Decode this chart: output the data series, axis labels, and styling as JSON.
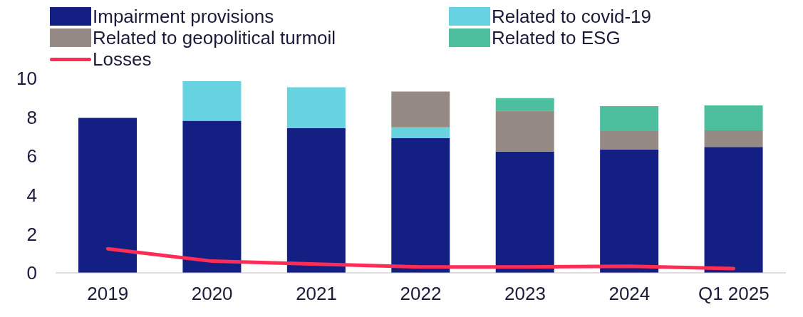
{
  "chart_data": {
    "type": "bar",
    "stacked": true,
    "categories": [
      "2019",
      "2020",
      "2021",
      "2022",
      "2023",
      "2024",
      "Q1 2025"
    ],
    "series": [
      {
        "name": "Impairment provisions",
        "color": "#131f82",
        "values": [
          7.97,
          7.82,
          7.44,
          6.92,
          6.24,
          6.35,
          6.47
        ]
      },
      {
        "name": "Related to covid-19",
        "color": "#68d3e0",
        "values": [
          null,
          2.03,
          2.1,
          0.56,
          null,
          null,
          null
        ]
      },
      {
        "name": "Related to geopolitical turmoil",
        "color": "#958b84",
        "values": [
          null,
          null,
          null,
          1.84,
          2.1,
          0.94,
          0.86
        ]
      },
      {
        "name": "Related to ESG",
        "color": "#4dbf9f",
        "values": [
          null,
          null,
          null,
          null,
          0.64,
          1.28,
          1.28
        ]
      },
      {
        "name": "Losses",
        "type": "line",
        "color": "#ff2d55",
        "values": [
          1.24,
          0.6,
          0.45,
          0.3,
          0.3,
          0.34,
          0.22
        ]
      }
    ],
    "ylim": [
      0,
      10
    ],
    "yticks": [
      0,
      2,
      4,
      6,
      8,
      10
    ],
    "grid": false,
    "legend": "top",
    "marker": "none",
    "line_style": "solid"
  }
}
